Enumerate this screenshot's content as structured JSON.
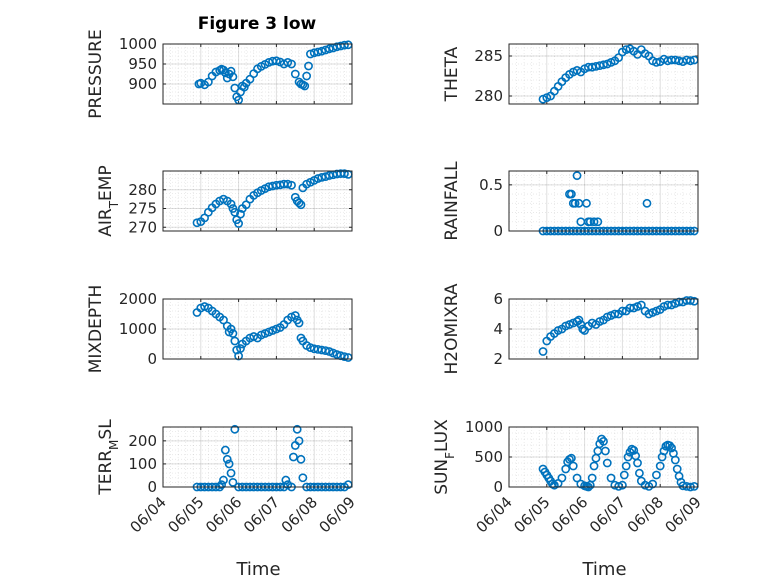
{
  "figure": {
    "title": "Figure 3 low"
  },
  "chart_data": [
    {
      "type": "scatter",
      "title": "Figure 3 low",
      "xlabel": "",
      "ylabel": "PRESSURE",
      "ylim": [
        850,
        1000
      ],
      "yticks": [
        900,
        950,
        1000
      ],
      "xlim": [
        0,
        5
      ],
      "x_ticklabels": [
        "06/04",
        "06/05",
        "06/06",
        "06/07",
        "06/08",
        "06/09"
      ],
      "grid": true,
      "series": [
        {
          "x": [
            0.95,
            1.0,
            1.1,
            1.2,
            1.3,
            1.4,
            1.5,
            1.55,
            1.6,
            1.65,
            1.7,
            1.75,
            1.8,
            1.85,
            1.9,
            1.95,
            2.0,
            2.05,
            2.1,
            2.15,
            2.2,
            2.3,
            2.4,
            2.5,
            2.6,
            2.7,
            2.8,
            2.9,
            3.0,
            3.1,
            3.2,
            3.3,
            3.4,
            3.5,
            3.6,
            3.65,
            3.7,
            3.75,
            3.8,
            3.85,
            3.9,
            4.0,
            4.1,
            4.2,
            4.3,
            4.4,
            4.5,
            4.6,
            4.7,
            4.8,
            4.9
          ],
          "y": [
            900,
            902,
            898,
            905,
            920,
            930,
            934,
            937,
            935,
            928,
            915,
            925,
            932,
            918,
            890,
            868,
            860,
            880,
            895,
            892,
            902,
            912,
            926,
            938,
            944,
            949,
            954,
            957,
            958,
            955,
            950,
            954,
            950,
            925,
            905,
            900,
            898,
            895,
            920,
            945,
            975,
            978,
            980,
            982,
            985,
            988,
            990,
            993,
            995,
            997,
            998
          ]
        }
      ]
    },
    {
      "type": "scatter",
      "title": "",
      "xlabel": "",
      "ylabel": "THETA",
      "ylim": [
        279,
        286.5
      ],
      "yticks": [
        280,
        285
      ],
      "xlim": [
        0,
        5
      ],
      "x_ticklabels": [
        "06/04",
        "06/05",
        "06/06",
        "06/07",
        "06/08",
        "06/09"
      ],
      "grid": true,
      "series": [
        {
          "x": [
            0.9,
            1.0,
            1.1,
            1.2,
            1.3,
            1.4,
            1.5,
            1.6,
            1.7,
            1.8,
            1.9,
            2.0,
            2.1,
            2.2,
            2.3,
            2.4,
            2.5,
            2.6,
            2.7,
            2.8,
            2.9,
            3.0,
            3.1,
            3.2,
            3.3,
            3.4,
            3.5,
            3.6,
            3.7,
            3.8,
            3.9,
            4.0,
            4.1,
            4.2,
            4.3,
            4.4,
            4.5,
            4.6,
            4.7,
            4.8,
            4.9
          ],
          "y": [
            279.6,
            279.8,
            280.0,
            280.6,
            281.2,
            281.8,
            282.3,
            282.7,
            283.0,
            283.2,
            283.0,
            283.4,
            283.6,
            283.6,
            283.7,
            283.8,
            283.9,
            284.0,
            284.2,
            284.4,
            284.8,
            285.5,
            285.8,
            285.9,
            285.6,
            285.2,
            285.8,
            285.3,
            285.0,
            284.4,
            284.2,
            284.3,
            284.6,
            284.4,
            284.5,
            284.5,
            284.4,
            284.3,
            284.5,
            284.4,
            284.5
          ]
        }
      ]
    },
    {
      "type": "scatter",
      "title": "",
      "xlabel": "",
      "ylabel": "AIR_TEMP",
      "ylim": [
        269,
        285
      ],
      "yticks": [
        270,
        275,
        280
      ],
      "xlim": [
        0,
        5
      ],
      "x_ticklabels": [
        "06/04",
        "06/05",
        "06/06",
        "06/07",
        "06/08",
        "06/09"
      ],
      "grid": true,
      "series": [
        {
          "x": [
            0.9,
            1.0,
            1.1,
            1.2,
            1.3,
            1.4,
            1.5,
            1.6,
            1.7,
            1.8,
            1.85,
            1.9,
            1.95,
            2.0,
            2.05,
            2.1,
            2.2,
            2.3,
            2.4,
            2.5,
            2.6,
            2.7,
            2.8,
            2.9,
            3.0,
            3.1,
            3.2,
            3.3,
            3.4,
            3.5,
            3.55,
            3.6,
            3.65,
            3.7,
            3.8,
            3.9,
            4.0,
            4.1,
            4.2,
            4.3,
            4.4,
            4.5,
            4.6,
            4.7,
            4.8,
            4.9
          ],
          "y": [
            271.2,
            271.5,
            272.5,
            274.0,
            275.2,
            276.2,
            277.0,
            277.5,
            277.0,
            276.2,
            275.0,
            274.0,
            272.0,
            271.0,
            273.5,
            275.0,
            276.0,
            277.5,
            278.5,
            279.2,
            279.8,
            280.3,
            280.8,
            281.0,
            281.2,
            281.3,
            281.5,
            281.5,
            281.2,
            278.0,
            277.0,
            276.5,
            276.0,
            280.5,
            281.5,
            282.0,
            282.5,
            283.0,
            283.3,
            283.5,
            283.8,
            284.0,
            284.2,
            284.3,
            284.3,
            284.1
          ]
        }
      ]
    },
    {
      "type": "scatter",
      "title": "",
      "xlabel": "",
      "ylabel": "RAINFALL",
      "ylim": [
        0,
        0.65
      ],
      "yticks": [
        0,
        0.5
      ],
      "xlim": [
        0,
        5
      ],
      "x_ticklabels": [
        "06/04",
        "06/05",
        "06/06",
        "06/07",
        "06/08",
        "06/09"
      ],
      "grid": true,
      "series": [
        {
          "x": [
            0.9,
            1.0,
            1.1,
            1.2,
            1.3,
            1.4,
            1.5,
            1.6,
            1.7,
            1.8,
            1.9,
            2.0,
            2.1,
            2.2,
            2.3,
            2.4,
            2.5,
            2.6,
            2.7,
            2.8,
            2.9,
            3.0,
            3.1,
            3.2,
            3.3,
            3.4,
            3.5,
            3.6,
            3.7,
            3.8,
            3.9,
            4.0,
            4.1,
            4.2,
            4.3,
            4.4,
            4.5,
            4.6,
            4.7,
            4.8,
            4.9,
            1.6,
            1.65,
            1.7,
            1.75,
            1.8,
            1.85,
            1.9,
            2.05,
            2.1,
            2.15,
            2.25,
            2.35,
            3.65
          ],
          "y": [
            0,
            0,
            0,
            0,
            0,
            0,
            0,
            0,
            0,
            0,
            0,
            0,
            0,
            0,
            0,
            0,
            0,
            0,
            0,
            0,
            0,
            0,
            0,
            0,
            0,
            0,
            0,
            0,
            0,
            0,
            0,
            0,
            0,
            0,
            0,
            0,
            0,
            0,
            0,
            0,
            0,
            0.4,
            0.4,
            0.3,
            0.3,
            0.6,
            0.3,
            0.1,
            0.3,
            0.1,
            0.1,
            0.1,
            0.1,
            0.3
          ]
        }
      ]
    },
    {
      "type": "scatter",
      "title": "",
      "xlabel": "",
      "ylabel": "MIXDEPTH",
      "ylim": [
        0,
        2000
      ],
      "yticks": [
        0,
        1000,
        2000
      ],
      "xlim": [
        0,
        5
      ],
      "x_ticklabels": [
        "06/04",
        "06/05",
        "06/06",
        "06/07",
        "06/08",
        "06/09"
      ],
      "grid": true,
      "series": [
        {
          "x": [
            0.9,
            1.0,
            1.1,
            1.2,
            1.3,
            1.4,
            1.5,
            1.6,
            1.7,
            1.75,
            1.8,
            1.85,
            1.9,
            1.95,
            2.0,
            2.05,
            2.1,
            2.2,
            2.3,
            2.4,
            2.5,
            2.6,
            2.7,
            2.8,
            2.9,
            3.0,
            3.1,
            3.2,
            3.3,
            3.4,
            3.5,
            3.55,
            3.6,
            3.65,
            3.7,
            3.8,
            3.9,
            4.0,
            4.1,
            4.2,
            4.3,
            4.4,
            4.5,
            4.6,
            4.7,
            4.8,
            4.9
          ],
          "y": [
            1550,
            1700,
            1750,
            1700,
            1600,
            1500,
            1400,
            1300,
            1100,
            900,
            1000,
            850,
            600,
            300,
            100,
            350,
            500,
            600,
            700,
            750,
            700,
            800,
            850,
            900,
            950,
            1000,
            1050,
            1150,
            1300,
            1400,
            1450,
            1300,
            1200,
            700,
            600,
            450,
            380,
            340,
            320,
            300,
            280,
            250,
            200,
            150,
            110,
            80,
            50
          ]
        }
      ]
    },
    {
      "type": "scatter",
      "title": "",
      "xlabel": "",
      "ylabel": "H2OMIXRA",
      "ylim": [
        2,
        6
      ],
      "yticks": [
        2,
        4,
        6
      ],
      "xlim": [
        0,
        5
      ],
      "x_ticklabels": [
        "06/04",
        "06/05",
        "06/06",
        "06/07",
        "06/08",
        "06/09"
      ],
      "grid": true,
      "series": [
        {
          "x": [
            0.9,
            1.0,
            1.1,
            1.2,
            1.3,
            1.4,
            1.5,
            1.6,
            1.7,
            1.8,
            1.85,
            1.9,
            1.95,
            2.0,
            2.1,
            2.2,
            2.3,
            2.4,
            2.5,
            2.6,
            2.7,
            2.8,
            2.9,
            3.0,
            3.1,
            3.2,
            3.3,
            3.4,
            3.5,
            3.6,
            3.7,
            3.8,
            3.9,
            4.0,
            4.1,
            4.2,
            4.3,
            4.4,
            4.5,
            4.6,
            4.7,
            4.8,
            4.9
          ],
          "y": [
            2.5,
            3.2,
            3.5,
            3.7,
            3.9,
            4.0,
            4.2,
            4.3,
            4.4,
            4.5,
            4.6,
            4.3,
            4.0,
            3.9,
            4.2,
            4.4,
            4.3,
            4.5,
            4.6,
            4.8,
            4.9,
            5.0,
            5.0,
            5.2,
            5.2,
            5.4,
            5.4,
            5.5,
            5.6,
            5.2,
            5.0,
            5.1,
            5.2,
            5.3,
            5.5,
            5.6,
            5.6,
            5.7,
            5.8,
            5.8,
            5.9,
            5.9,
            5.85
          ]
        }
      ]
    },
    {
      "type": "scatter",
      "title": "",
      "xlabel": "Time",
      "ylabel": "TERR_MSL",
      "ylim": [
        0,
        260
      ],
      "yticks": [
        0,
        100,
        200
      ],
      "xlim": [
        0,
        5
      ],
      "x_ticklabels": [
        "06/04",
        "06/05",
        "06/06",
        "06/07",
        "06/08",
        "06/09"
      ],
      "grid": true,
      "series": [
        {
          "x": [
            0.9,
            1.0,
            1.1,
            1.2,
            1.3,
            1.4,
            1.5,
            1.55,
            1.6,
            1.65,
            1.7,
            1.75,
            1.8,
            1.85,
            1.9,
            2.0,
            2.1,
            2.2,
            2.3,
            2.4,
            2.5,
            2.6,
            2.7,
            2.8,
            2.9,
            3.0,
            3.1,
            3.2,
            3.25,
            3.3,
            3.4,
            3.45,
            3.5,
            3.55,
            3.6,
            3.65,
            3.7,
            3.8,
            3.9,
            4.0,
            4.1,
            4.2,
            4.3,
            4.4,
            4.5,
            4.6,
            4.7,
            4.8,
            4.9
          ],
          "y": [
            0,
            0,
            0,
            0,
            0,
            0,
            0,
            10,
            30,
            160,
            120,
            100,
            60,
            20,
            250,
            0,
            0,
            0,
            0,
            0,
            0,
            0,
            0,
            0,
            0,
            0,
            0,
            0,
            30,
            10,
            0,
            130,
            180,
            250,
            200,
            120,
            40,
            0,
            0,
            0,
            0,
            0,
            0,
            0,
            0,
            0,
            0,
            0,
            10
          ]
        }
      ]
    },
    {
      "type": "scatter",
      "title": "",
      "xlabel": "Time",
      "ylabel": "SUN_FLUX",
      "ylim": [
        0,
        1000
      ],
      "yticks": [
        0,
        500,
        1000
      ],
      "xlim": [
        0,
        5
      ],
      "x_ticklabels": [
        "06/04",
        "06/05",
        "06/06",
        "06/07",
        "06/08",
        "06/09"
      ],
      "grid": true,
      "series": [
        {
          "x": [
            0.9,
            0.95,
            1.0,
            1.05,
            1.1,
            1.15,
            1.2,
            1.3,
            1.4,
            1.5,
            1.55,
            1.6,
            1.65,
            1.7,
            1.8,
            1.9,
            2.0,
            2.05,
            2.1,
            2.15,
            2.2,
            2.25,
            2.3,
            2.35,
            2.4,
            2.45,
            2.5,
            2.55,
            2.6,
            2.7,
            2.8,
            2.9,
            3.0,
            3.05,
            3.1,
            3.15,
            3.2,
            3.25,
            3.3,
            3.35,
            3.4,
            3.45,
            3.5,
            3.6,
            3.7,
            3.8,
            3.9,
            4.0,
            4.05,
            4.1,
            4.15,
            4.2,
            4.25,
            4.3,
            4.35,
            4.4,
            4.45,
            4.5,
            4.55,
            4.6,
            4.7,
            4.8,
            4.9
          ],
          "y": [
            300,
            250,
            200,
            150,
            100,
            50,
            30,
            60,
            150,
            300,
            420,
            460,
            480,
            350,
            150,
            50,
            20,
            10,
            0,
            30,
            150,
            350,
            480,
            600,
            720,
            800,
            760,
            600,
            400,
            150,
            30,
            10,
            30,
            200,
            350,
            500,
            580,
            630,
            610,
            520,
            400,
            230,
            100,
            30,
            10,
            50,
            200,
            350,
            500,
            600,
            680,
            700,
            690,
            650,
            560,
            450,
            300,
            180,
            80,
            20,
            10,
            0,
            10
          ]
        }
      ]
    }
  ]
}
